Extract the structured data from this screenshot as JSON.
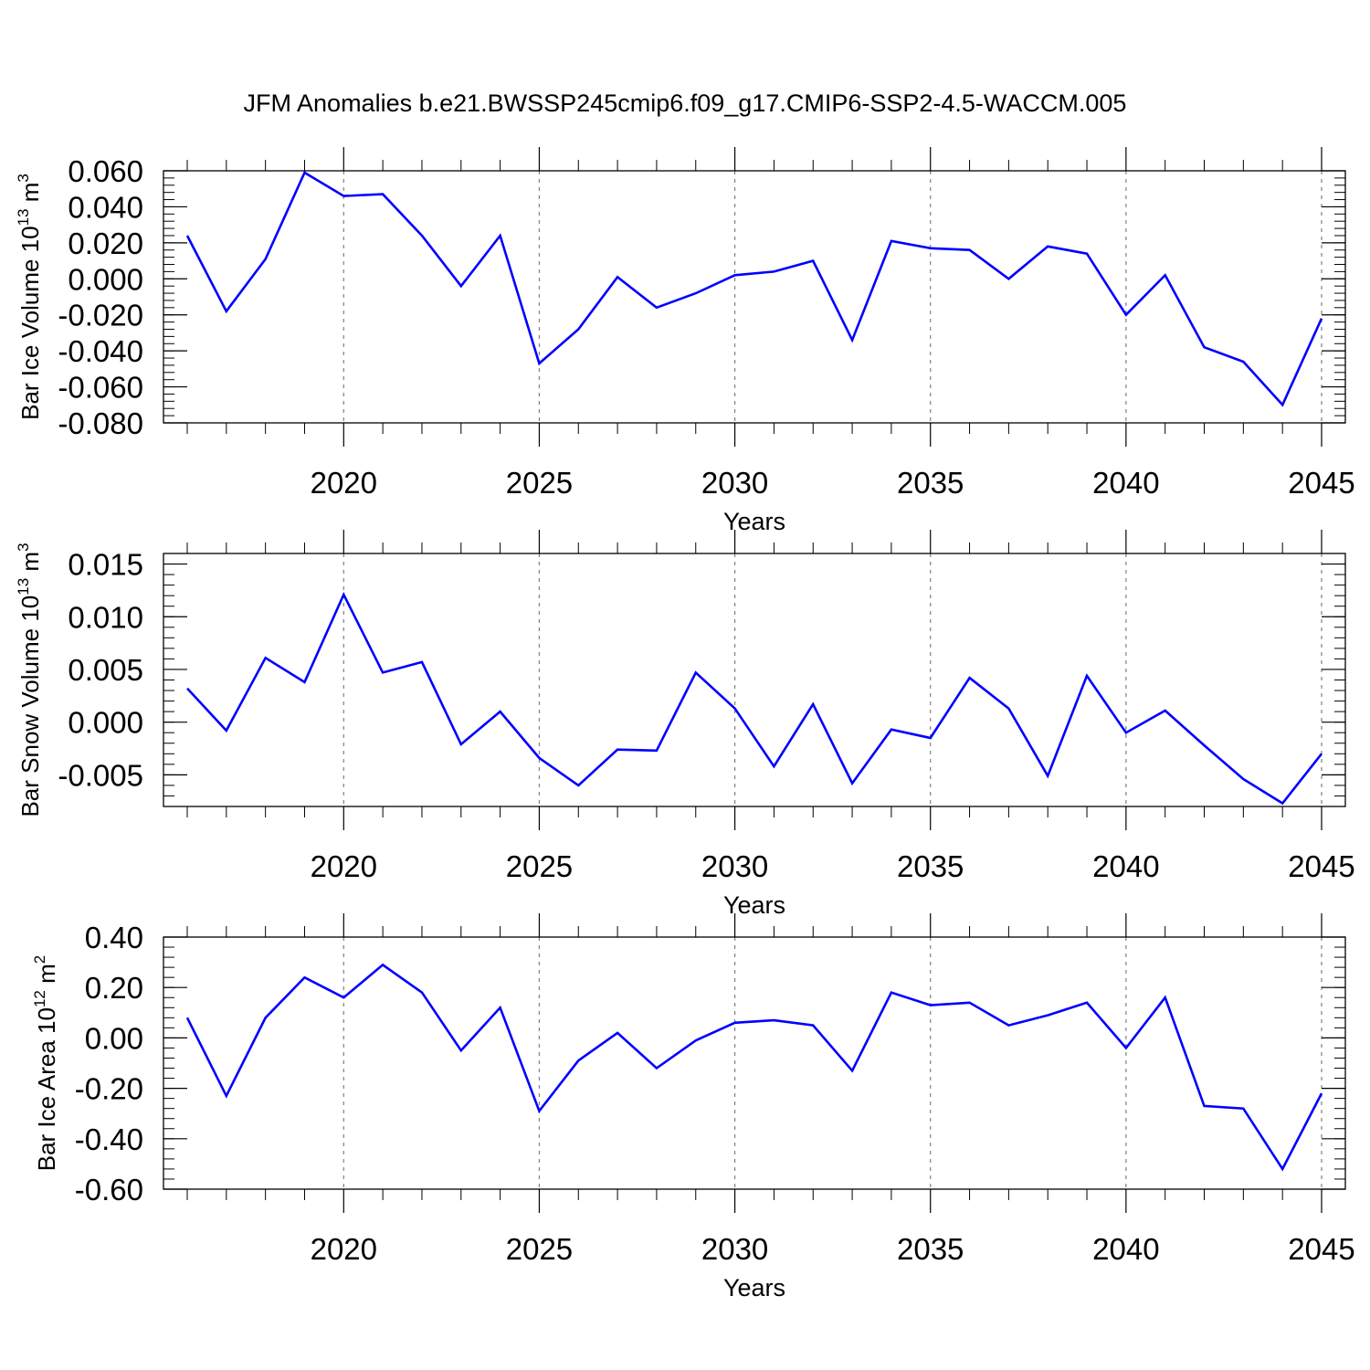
{
  "title": "JFM Anomalies b.e21.BWSSP245cmip6.f09_g17.CMIP6-SSP2-4.5-WACCM.005",
  "colors": {
    "line": "#0000ff",
    "axis": "#000000",
    "grid": "#808080",
    "background": "#ffffff"
  },
  "chart_data": [
    {
      "type": "line",
      "ylabel": "Bar Ice Volume 10",
      "ylabel_exp": "13",
      "ylabel_unit": " m",
      "ylabel_unit_exp": "3",
      "xlabel": "Years",
      "xlim": [
        2016,
        2045
      ],
      "ylim": [
        -0.08,
        0.06
      ],
      "yticks": [
        0.06,
        0.04,
        0.02,
        0.0,
        -0.02,
        -0.04,
        -0.06,
        -0.08
      ],
      "yticklabels": [
        "0.060",
        "0.040",
        "0.020",
        "0.000",
        "-0.020",
        "-0.040",
        "-0.060",
        "-0.080"
      ],
      "xticks": [
        2020,
        2025,
        2030,
        2035,
        2040,
        2045
      ],
      "xticklabels": [
        "2020",
        "2025",
        "2030",
        "2035",
        "2040",
        "2045"
      ],
      "grid": "dashed vertical at major x ticks",
      "x": [
        2016,
        2017,
        2018,
        2019,
        2020,
        2021,
        2022,
        2023,
        2024,
        2025,
        2026,
        2027,
        2028,
        2029,
        2030,
        2031,
        2032,
        2033,
        2034,
        2035,
        2036,
        2037,
        2038,
        2039,
        2040,
        2041,
        2042,
        2043,
        2044,
        2045
      ],
      "series": [
        {
          "values": [
            0.024,
            -0.018,
            0.011,
            0.059,
            0.046,
            0.047,
            0.024,
            -0.004,
            0.024,
            -0.047,
            -0.028,
            0.001,
            -0.016,
            -0.008,
            0.002,
            0.004,
            0.01,
            -0.034,
            0.021,
            0.017,
            0.016,
            0.0,
            0.018,
            0.014,
            -0.02,
            0.002,
            -0.038,
            -0.046,
            -0.07,
            -0.022
          ]
        }
      ]
    },
    {
      "type": "line",
      "ylabel": "Bar Snow Volume 10",
      "ylabel_exp": "13",
      "ylabel_unit": " m",
      "ylabel_unit_exp": "3",
      "xlabel": "Years",
      "xlim": [
        2016,
        2045
      ],
      "ylim": [
        -0.008,
        0.016
      ],
      "yticks": [
        0.015,
        0.01,
        0.005,
        0.0,
        -0.005
      ],
      "yticklabels": [
        "0.015",
        "0.010",
        "0.005",
        "0.000",
        "-0.005"
      ],
      "xticks": [
        2020,
        2025,
        2030,
        2035,
        2040,
        2045
      ],
      "xticklabels": [
        "2020",
        "2025",
        "2030",
        "2035",
        "2040",
        "2045"
      ],
      "grid": "dashed vertical at major x ticks",
      "x": [
        2016,
        2017,
        2018,
        2019,
        2020,
        2021,
        2022,
        2023,
        2024,
        2025,
        2026,
        2027,
        2028,
        2029,
        2030,
        2031,
        2032,
        2033,
        2034,
        2035,
        2036,
        2037,
        2038,
        2039,
        2040,
        2041,
        2042,
        2043,
        2044,
        2045
      ],
      "series": [
        {
          "values": [
            0.0032,
            -0.0008,
            0.0061,
            0.0038,
            0.0121,
            0.0047,
            0.0057,
            -0.0021,
            0.001,
            -0.0034,
            -0.006,
            -0.0026,
            -0.0027,
            0.0047,
            0.0013,
            -0.0042,
            0.0017,
            -0.0058,
            -0.0007,
            -0.0015,
            0.0042,
            0.0013,
            -0.0051,
            0.0044,
            -0.001,
            0.0011,
            -0.0022,
            -0.0054,
            -0.0077,
            -0.003
          ]
        }
      ]
    },
    {
      "type": "line",
      "ylabel": "Bar Ice Area 10",
      "ylabel_exp": "12",
      "ylabel_unit": " m",
      "ylabel_unit_exp": "2",
      "xlabel": "Years",
      "xlim": [
        2016,
        2045
      ],
      "ylim": [
        -0.6,
        0.4
      ],
      "yticks": [
        0.4,
        0.2,
        0.0,
        -0.2,
        -0.4,
        -0.6
      ],
      "yticklabels": [
        "0.40",
        "0.20",
        "0.00",
        "-0.20",
        "-0.40",
        "-0.60"
      ],
      "xticks": [
        2020,
        2025,
        2030,
        2035,
        2040,
        2045
      ],
      "xticklabels": [
        "2020",
        "2025",
        "2030",
        "2035",
        "2040",
        "2045"
      ],
      "grid": "dashed vertical at major x ticks",
      "x": [
        2016,
        2017,
        2018,
        2019,
        2020,
        2021,
        2022,
        2023,
        2024,
        2025,
        2026,
        2027,
        2028,
        2029,
        2030,
        2031,
        2032,
        2033,
        2034,
        2035,
        2036,
        2037,
        2038,
        2039,
        2040,
        2041,
        2042,
        2043,
        2044,
        2045
      ],
      "series": [
        {
          "values": [
            0.08,
            -0.23,
            0.08,
            0.24,
            0.16,
            0.29,
            0.18,
            -0.05,
            0.12,
            -0.29,
            -0.09,
            0.02,
            -0.12,
            -0.01,
            0.06,
            0.07,
            0.05,
            -0.13,
            0.18,
            0.13,
            0.14,
            0.05,
            0.09,
            0.14,
            -0.04,
            0.16,
            -0.27,
            -0.28,
            -0.52,
            -0.22
          ]
        }
      ]
    }
  ]
}
